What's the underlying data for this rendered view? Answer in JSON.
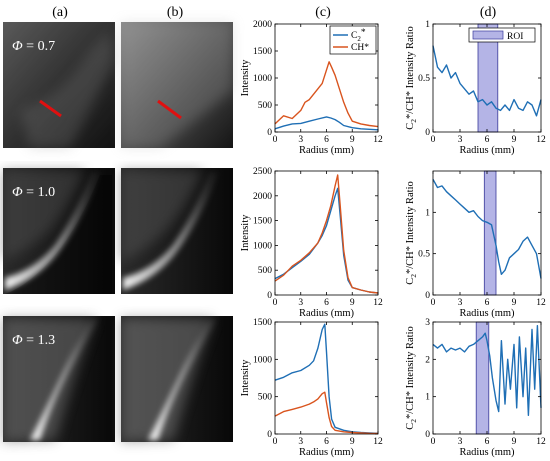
{
  "column_labels": [
    "(a)",
    "(b)",
    "(c)",
    "(d)"
  ],
  "rows": [
    {
      "phi_symbol": "Φ",
      "phi_text": " = 0.7",
      "show_red_line": true
    },
    {
      "phi_symbol": "Φ",
      "phi_text": " = 1.0",
      "show_red_line": false
    },
    {
      "phi_symbol": "Φ",
      "phi_text": " = 1.3",
      "show_red_line": false
    }
  ],
  "colors": {
    "c2": "#1f6fb5",
    "ch": "#d9541e",
    "roi_fill": "#b4b4e6",
    "roi_edge": "#3a3a9a",
    "ratio": "#1f6fb5",
    "red_line": "#e01010"
  },
  "chart_data": [
    {
      "type": "line",
      "panel": "c-phi-0.7",
      "xlabel": "Radius (mm)",
      "ylabel": "Intensity",
      "xlim": [
        0,
        12
      ],
      "ylim": [
        0,
        2000
      ],
      "xticks": [
        0,
        3,
        6,
        9,
        12
      ],
      "yticks": [
        0,
        500,
        1000,
        1500,
        2000
      ],
      "legend": {
        "position": "top-right",
        "entries": [
          {
            "sub": "C",
            "sub2": "2",
            "suffix": "*",
            "color": "c2"
          },
          {
            "sub": "CH*",
            "sub2": "",
            "suffix": "",
            "color": "ch"
          }
        ]
      },
      "series": [
        {
          "name": "C2*",
          "color": "c2",
          "x": [
            0,
            1,
            2,
            3,
            4,
            5,
            6,
            6.5,
            7,
            7.5,
            8,
            9,
            10,
            11,
            12
          ],
          "y": [
            60,
            110,
            150,
            160,
            200,
            240,
            280,
            260,
            230,
            180,
            120,
            80,
            60,
            50,
            40
          ]
        },
        {
          "name": "CH*",
          "color": "ch",
          "x": [
            0,
            1,
            2,
            3,
            3.5,
            4,
            5,
            5.5,
            6,
            6.3,
            6.6,
            7,
            7.5,
            8,
            8.5,
            9,
            10,
            11,
            12
          ],
          "y": [
            150,
            300,
            250,
            400,
            550,
            600,
            800,
            900,
            1150,
            1300,
            1200,
            1050,
            800,
            550,
            350,
            200,
            150,
            120,
            100
          ]
        }
      ]
    },
    {
      "type": "line",
      "panel": "c-phi-1.0",
      "xlabel": "Radius (mm)",
      "ylabel": "Intensity",
      "xlim": [
        0,
        12
      ],
      "ylim": [
        0,
        2500
      ],
      "xticks": [
        0,
        3,
        6,
        9,
        12
      ],
      "yticks": [
        0,
        500,
        1000,
        1500,
        2000,
        2500
      ],
      "series": [
        {
          "name": "C2*",
          "color": "c2",
          "x": [
            0,
            1,
            2,
            3,
            4,
            5,
            5.5,
            6,
            6.5,
            7,
            7.3,
            7.6,
            8,
            8.5,
            9,
            10,
            11,
            12
          ],
          "y": [
            330,
            420,
            550,
            680,
            820,
            1050,
            1200,
            1400,
            1700,
            2000,
            2150,
            1600,
            800,
            300,
            150,
            100,
            60,
            40
          ]
        },
        {
          "name": "CH*",
          "color": "ch",
          "x": [
            0,
            1,
            2,
            3,
            4,
            5,
            5.5,
            6,
            6.5,
            7,
            7.3,
            7.6,
            8,
            8.5,
            9,
            10,
            11,
            12
          ],
          "y": [
            280,
            400,
            580,
            700,
            850,
            1050,
            1250,
            1500,
            1800,
            2200,
            2420,
            1800,
            900,
            350,
            150,
            100,
            60,
            40
          ]
        }
      ]
    },
    {
      "type": "line",
      "panel": "c-phi-1.3",
      "xlabel": "Radius (mm)",
      "ylabel": "Intensity",
      "xlim": [
        0,
        12
      ],
      "ylim": [
        0,
        1500
      ],
      "xticks": [
        0,
        3,
        6,
        9,
        12
      ],
      "yticks": [
        0,
        500,
        1000,
        1500
      ],
      "series": [
        {
          "name": "C2*",
          "color": "c2",
          "x": [
            0,
            1,
            2,
            3,
            4,
            4.5,
            5,
            5.5,
            5.8,
            6,
            6.3,
            6.6,
            7,
            8,
            9,
            10,
            11,
            12
          ],
          "y": [
            720,
            760,
            820,
            850,
            920,
            980,
            1150,
            1400,
            1470,
            1100,
            500,
            200,
            90,
            50,
            30,
            20,
            15,
            10
          ]
        },
        {
          "name": "CH*",
          "color": "ch",
          "x": [
            0,
            1,
            2,
            3,
            4,
            4.5,
            5,
            5.5,
            5.8,
            6,
            6.3,
            6.6,
            7,
            8,
            9,
            10,
            11,
            12
          ],
          "y": [
            240,
            300,
            330,
            360,
            400,
            430,
            470,
            540,
            560,
            420,
            220,
            100,
            50,
            30,
            20,
            15,
            10,
            8
          ]
        }
      ]
    },
    {
      "type": "line",
      "panel": "d-phi-0.7",
      "xlabel": "Radius (mm)",
      "ylabel": "C2*/CH* Intensity Ratio",
      "xlim": [
        0,
        12
      ],
      "ylim": [
        0,
        1.0
      ],
      "xticks": [
        0,
        3,
        6,
        9,
        12
      ],
      "yticks": [
        0,
        0.5,
        1
      ],
      "roi": [
        5,
        7.2
      ],
      "legend": {
        "position": "top-right",
        "entries": [
          {
            "label": "ROI"
          }
        ]
      },
      "series": [
        {
          "name": "C2*/CH*",
          "color": "ratio",
          "x": [
            0,
            0.5,
            1,
            1.5,
            2,
            2.5,
            3,
            3.5,
            4,
            4.5,
            5,
            5.5,
            6,
            6.5,
            7,
            7.5,
            8,
            8.5,
            9,
            9.5,
            10,
            10.5,
            11,
            11.5,
            12
          ],
          "y": [
            0.8,
            0.6,
            0.55,
            0.62,
            0.5,
            0.55,
            0.45,
            0.4,
            0.35,
            0.38,
            0.28,
            0.3,
            0.25,
            0.28,
            0.22,
            0.2,
            0.25,
            0.2,
            0.3,
            0.22,
            0.2,
            0.28,
            0.25,
            0.15,
            0.3
          ]
        }
      ]
    },
    {
      "type": "line",
      "panel": "d-phi-1.0",
      "xlabel": "Radius (mm)",
      "ylabel": "C2*/CH* Intensity Ratio",
      "xlim": [
        0,
        12
      ],
      "ylim": [
        0,
        1.5
      ],
      "xticks": [
        0,
        3,
        6,
        9,
        12
      ],
      "yticks": [
        0,
        0.5,
        1
      ],
      "roi": [
        5.7,
        7.0
      ],
      "series": [
        {
          "name": "C2*/CH*",
          "color": "ratio",
          "x": [
            0,
            0.5,
            1,
            1.5,
            2,
            2.5,
            3,
            3.5,
            4,
            4.5,
            5,
            5.5,
            6,
            6.5,
            7,
            7.3,
            7.6,
            8,
            8.5,
            9,
            9.5,
            10,
            10.5,
            11,
            11.5,
            12
          ],
          "y": [
            1.4,
            1.3,
            1.32,
            1.25,
            1.2,
            1.15,
            1.1,
            1.05,
            1.0,
            1.02,
            0.95,
            0.9,
            0.88,
            0.85,
            0.6,
            0.4,
            0.25,
            0.3,
            0.45,
            0.5,
            0.55,
            0.65,
            0.7,
            0.6,
            0.5,
            0.2
          ]
        }
      ]
    },
    {
      "type": "line",
      "panel": "d-phi-1.3",
      "xlabel": "Radius (mm)",
      "ylabel": "C2*/CH* Intensity Ratio",
      "xlim": [
        0,
        12
      ],
      "ylim": [
        0,
        3
      ],
      "xticks": [
        0,
        3,
        6,
        9,
        12
      ],
      "yticks": [
        0,
        1,
        2,
        3
      ],
      "roi": [
        4.8,
        6.2
      ],
      "series": [
        {
          "name": "C2*/CH*",
          "color": "ratio",
          "x": [
            0,
            0.5,
            1,
            1.5,
            2,
            2.5,
            3,
            3.5,
            4,
            4.5,
            5,
            5.5,
            5.8,
            6,
            6.3,
            6.6,
            7,
            7.3,
            7.6,
            8,
            8.3,
            8.6,
            9,
            9.3,
            9.6,
            10,
            10.3,
            10.6,
            11,
            11.3,
            11.6,
            12
          ],
          "y": [
            2.4,
            2.3,
            2.4,
            2.2,
            2.3,
            2.25,
            2.3,
            2.2,
            2.35,
            2.4,
            2.5,
            2.6,
            2.7,
            2.5,
            2.1,
            1.5,
            0.9,
            0.6,
            2.5,
            0.8,
            2.0,
            1.2,
            2.4,
            0.7,
            2.6,
            1.0,
            2.3,
            0.5,
            2.8,
            1.2,
            2.9,
            0.7
          ]
        }
      ]
    }
  ]
}
